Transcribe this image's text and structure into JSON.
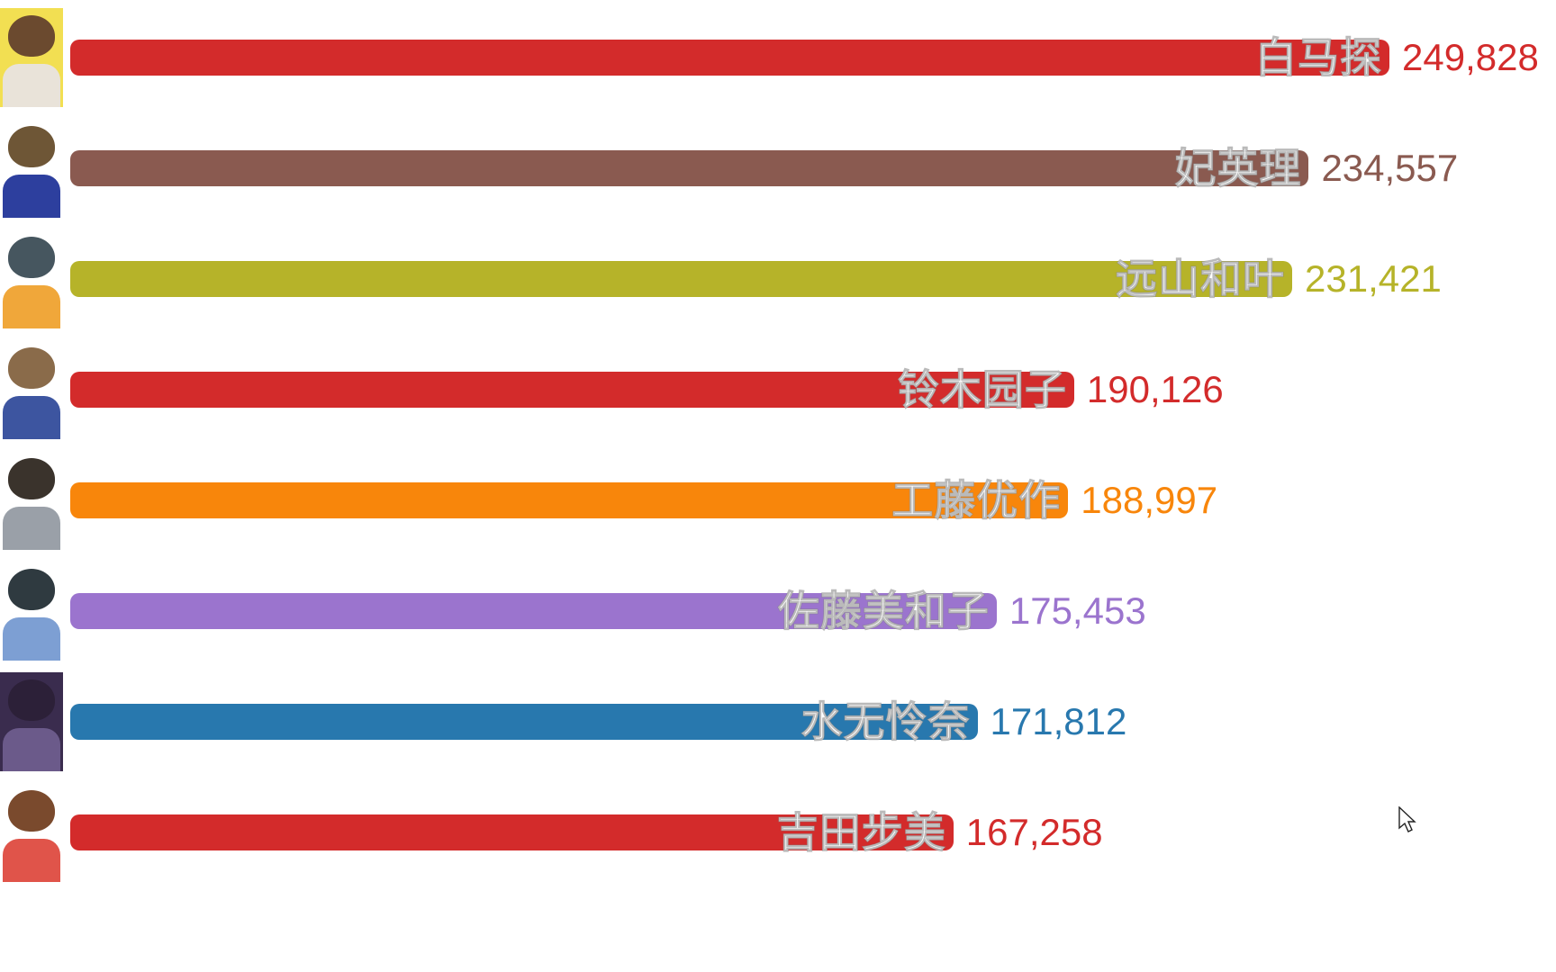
{
  "chart_data": {
    "type": "bar",
    "orientation": "horizontal",
    "title": "",
    "xlabel": "",
    "ylabel": "",
    "xlim": [
      0,
      249828
    ],
    "grid": false,
    "legend": "none",
    "categories": [
      "白马探",
      "妃英理",
      "远山和叶",
      "铃木园子",
      "工藤优作",
      "佐藤美和子",
      "水无怜奈",
      "吉田步美"
    ],
    "values": [
      249828,
      234557,
      231421,
      190126,
      188997,
      175453,
      171812,
      167258
    ],
    "bars": [
      {
        "label": "白马探",
        "value": 249828,
        "value_label": "249,828",
        "color": "#d32b2b",
        "avatar": {
          "bg": "#f2df52",
          "hair": "#6b4a2f",
          "body": "#e9e3d9"
        }
      },
      {
        "label": "妃英理",
        "value": 234557,
        "value_label": "234,557",
        "color": "#8a5a50",
        "avatar": {
          "bg": "#ffffff",
          "hair": "#6e5636",
          "body": "#2d3f9e"
        }
      },
      {
        "label": "远山和叶",
        "value": 231421,
        "value_label": "231,421",
        "color": "#b6b329",
        "avatar": {
          "bg": "#ffffff",
          "hair": "#46565f",
          "body": "#f0a73a"
        }
      },
      {
        "label": "铃木园子",
        "value": 190126,
        "value_label": "190,126",
        "color": "#d32b2b",
        "avatar": {
          "bg": "#ffffff",
          "hair": "#8a6b4a",
          "body": "#3d55a0"
        }
      },
      {
        "label": "工藤优作",
        "value": 188997,
        "value_label": "188,997",
        "color": "#f8860b",
        "avatar": {
          "bg": "#ffffff",
          "hair": "#3a332c",
          "body": "#9aa0a8"
        }
      },
      {
        "label": "佐藤美和子",
        "value": 175453,
        "value_label": "175,453",
        "color": "#9b74ce",
        "avatar": {
          "bg": "#ffffff",
          "hair": "#2f3a40",
          "body": "#7d9fd3"
        }
      },
      {
        "label": "水无怜奈",
        "value": 171812,
        "value_label": "171,812",
        "color": "#2878ae",
        "avatar": {
          "bg": "#3a2c4e",
          "hair": "#2c2038",
          "body": "#6b5a8a"
        }
      },
      {
        "label": "吉田步美",
        "value": 167258,
        "value_label": "167,258",
        "color": "#d32b2b",
        "avatar": {
          "bg": "#ffffff",
          "hair": "#7a4a2d",
          "body": "#e0544a"
        }
      }
    ]
  }
}
